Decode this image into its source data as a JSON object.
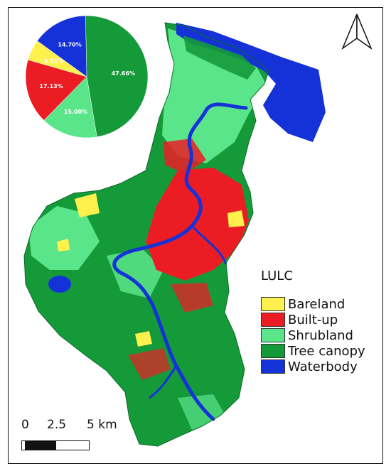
{
  "map": {
    "legend": {
      "title": "LULC",
      "items": [
        {
          "label": "Bareland",
          "color": "#fff14d"
        },
        {
          "label": "Built-up",
          "color": "#ec1c24"
        },
        {
          "label": "Shrubland",
          "color": "#5be58a"
        },
        {
          "label": "Tree canopy",
          "color": "#159a3a"
        },
        {
          "label": "Waterbody",
          "color": "#1432d8"
        }
      ]
    },
    "scale_bar": {
      "labels": [
        "0",
        "2.5",
        "5 km"
      ]
    },
    "north_arrow": {
      "icon": "north-arrow-icon"
    }
  },
  "chart_data": {
    "type": "pie",
    "slices": [
      {
        "category": "Tree canopy",
        "value": 47.66,
        "label": "47.66%"
      },
      {
        "category": "Shrubland",
        "value": 15.0,
        "label": "15.00%"
      },
      {
        "category": "Built-up",
        "value": 17.13,
        "label": "17.13%"
      },
      {
        "category": "Bareland",
        "value": 5.51,
        "label": "5.51%"
      },
      {
        "category": "Waterbody",
        "value": 14.7,
        "label": "14.70%"
      }
    ],
    "colors": {
      "Tree canopy": "#159a3a",
      "Shrubland": "#5be58a",
      "Built-up": "#ec1c24",
      "Bareland": "#fff14d",
      "Waterbody": "#1432d8"
    }
  }
}
